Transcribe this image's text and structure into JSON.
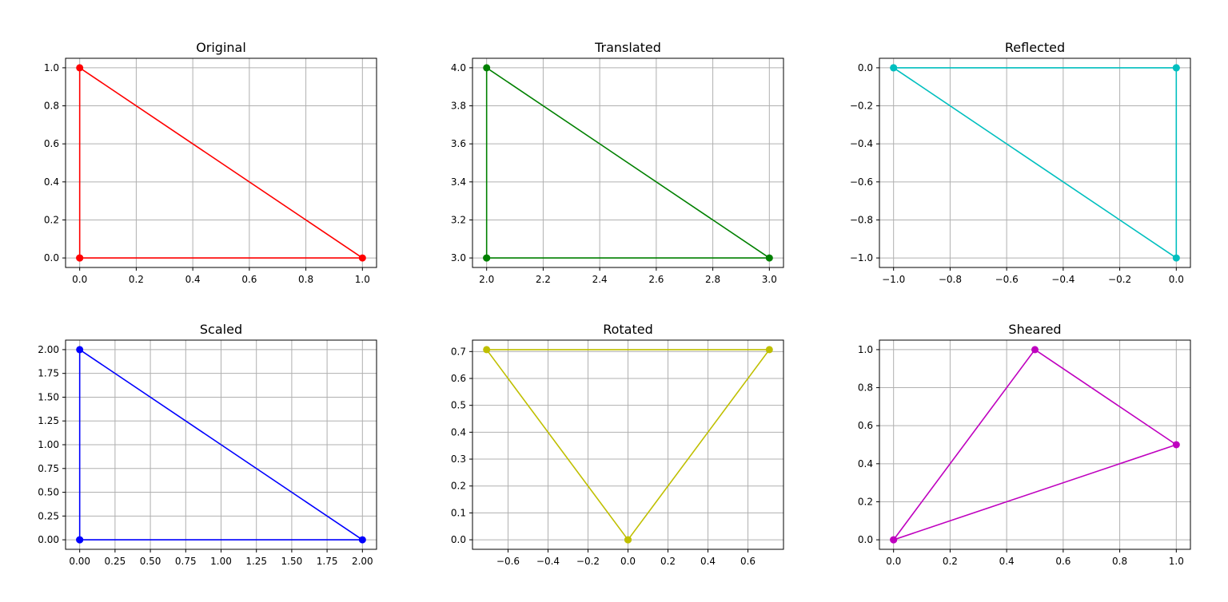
{
  "chart_data": [
    {
      "type": "line",
      "title": "Original",
      "color": "#ff0000",
      "points": [
        [
          0,
          0
        ],
        [
          1,
          0
        ],
        [
          0,
          1
        ],
        [
          0,
          0
        ]
      ],
      "xlim": [
        -0.05,
        1.05
      ],
      "ylim": [
        -0.05,
        1.05
      ],
      "xticks": [
        0,
        0.2,
        0.4,
        0.6,
        0.8,
        1.0
      ],
      "xtick_labels": [
        "0.0",
        "0.2",
        "0.4",
        "0.6",
        "0.8",
        "1.0"
      ],
      "yticks": [
        0,
        0.2,
        0.4,
        0.6,
        0.8,
        1.0
      ],
      "ytick_labels": [
        "0.0",
        "0.2",
        "0.4",
        "0.6",
        "0.8",
        "1.0"
      ],
      "grid": true
    },
    {
      "type": "line",
      "title": "Translated",
      "color": "#008000",
      "points": [
        [
          2,
          3
        ],
        [
          3,
          3
        ],
        [
          2,
          4
        ],
        [
          2,
          3
        ]
      ],
      "xlim": [
        1.95,
        3.05
      ],
      "ylim": [
        2.95,
        4.05
      ],
      "xticks": [
        2.0,
        2.2,
        2.4,
        2.6,
        2.8,
        3.0
      ],
      "xtick_labels": [
        "2.0",
        "2.2",
        "2.4",
        "2.6",
        "2.8",
        "3.0"
      ],
      "yticks": [
        3.0,
        3.2,
        3.4,
        3.6,
        3.8,
        4.0
      ],
      "ytick_labels": [
        "3.0",
        "3.2",
        "3.4",
        "3.6",
        "3.8",
        "4.0"
      ],
      "grid": true
    },
    {
      "type": "line",
      "title": "Reflected",
      "color": "#00bfbf",
      "points": [
        [
          0,
          0
        ],
        [
          -1,
          0
        ],
        [
          0,
          0
        ],
        [
          0,
          -1
        ],
        [
          -1,
          0
        ]
      ],
      "xlim": [
        -1.05,
        0.05
      ],
      "ylim": [
        -1.05,
        0.05
      ],
      "xticks": [
        -1.0,
        -0.8,
        -0.6,
        -0.4,
        -0.2,
        0.0
      ],
      "xtick_labels": [
        "−1.0",
        "−0.8",
        "−0.6",
        "−0.4",
        "−0.2",
        "0.0"
      ],
      "yticks": [
        -1.0,
        -0.8,
        -0.6,
        -0.4,
        -0.2,
        0.0
      ],
      "ytick_labels": [
        "−1.0",
        "−0.8",
        "−0.6",
        "−0.4",
        "−0.2",
        "0.0"
      ],
      "grid": true
    },
    {
      "type": "line",
      "title": "Scaled",
      "color": "#0000ff",
      "points": [
        [
          0,
          0
        ],
        [
          2,
          0
        ],
        [
          0,
          2
        ],
        [
          0,
          0
        ]
      ],
      "xlim": [
        -0.1,
        2.1
      ],
      "ylim": [
        -0.1,
        2.1
      ],
      "xticks": [
        0,
        0.25,
        0.5,
        0.75,
        1.0,
        1.25,
        1.5,
        1.75,
        2.0
      ],
      "xtick_labels": [
        "0.00",
        "0.25",
        "0.50",
        "0.75",
        "1.00",
        "1.25",
        "1.50",
        "1.75",
        "2.00"
      ],
      "yticks": [
        0,
        0.25,
        0.5,
        0.75,
        1.0,
        1.25,
        1.5,
        1.75,
        2.0
      ],
      "ytick_labels": [
        "0.00",
        "0.25",
        "0.50",
        "0.75",
        "1.00",
        "1.25",
        "1.50",
        "1.75",
        "2.00"
      ],
      "grid": true
    },
    {
      "type": "line",
      "title": "Rotated",
      "color": "#bfbf00",
      "points": [
        [
          0,
          0
        ],
        [
          0.7071,
          0.7071
        ],
        [
          -0.7071,
          0.7071
        ],
        [
          0,
          0
        ]
      ],
      "xlim": [
        -0.7778,
        0.7778
      ],
      "ylim": [
        -0.0354,
        0.7425
      ],
      "xticks": [
        -0.6,
        -0.4,
        -0.2,
        0.0,
        0.2,
        0.4,
        0.6
      ],
      "xtick_labels": [
        "−0.6",
        "−0.4",
        "−0.2",
        "0.0",
        "0.2",
        "0.4",
        "0.6"
      ],
      "yticks": [
        0.0,
        0.1,
        0.2,
        0.3,
        0.4,
        0.5,
        0.6,
        0.7
      ],
      "ytick_labels": [
        "0.0",
        "0.1",
        "0.2",
        "0.3",
        "0.4",
        "0.5",
        "0.6",
        "0.7"
      ],
      "grid": true
    },
    {
      "type": "line",
      "title": "Sheared",
      "color": "#bf00bf",
      "points": [
        [
          0,
          0
        ],
        [
          1,
          0.5
        ],
        [
          0.5,
          1
        ],
        [
          0,
          0
        ]
      ],
      "xlim": [
        -0.05,
        1.05
      ],
      "ylim": [
        -0.05,
        1.05
      ],
      "xticks": [
        0,
        0.2,
        0.4,
        0.6,
        0.8,
        1.0
      ],
      "xtick_labels": [
        "0.0",
        "0.2",
        "0.4",
        "0.6",
        "0.8",
        "1.0"
      ],
      "yticks": [
        0,
        0.2,
        0.4,
        0.6,
        0.8,
        1.0
      ],
      "ytick_labels": [
        "0.0",
        "0.2",
        "0.4",
        "0.6",
        "0.8",
        "1.0"
      ],
      "grid": true
    }
  ]
}
